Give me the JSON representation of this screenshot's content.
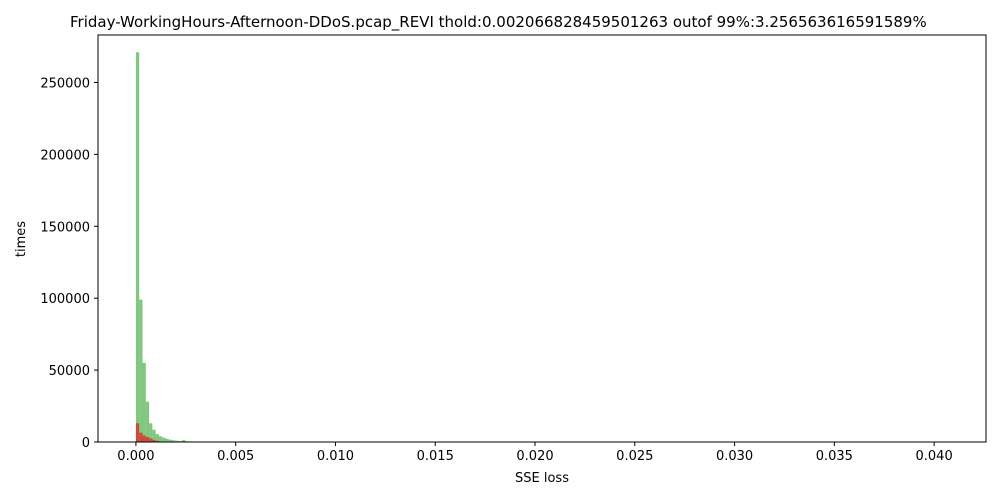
{
  "chart_data": {
    "type": "bar",
    "title": "Friday-WorkingHours-Afternoon-DDoS.pcap_REVI thold:0.002066828459501263 outof 99%:3.256563616591589%",
    "xlabel": "SSE loss",
    "ylabel": "times",
    "xlim": [
      -0.0019,
      0.0426
    ],
    "ylim": [
      0,
      283000
    ],
    "xticks": [
      0.0,
      0.005,
      0.01,
      0.015,
      0.02,
      0.025,
      0.03,
      0.035,
      0.04
    ],
    "xtick_labels": [
      "0.000",
      "0.005",
      "0.010",
      "0.015",
      "0.020",
      "0.025",
      "0.030",
      "0.035",
      "0.040"
    ],
    "yticks": [
      0,
      50000,
      100000,
      150000,
      200000,
      250000
    ],
    "ytick_labels": [
      "0",
      "50000",
      "100000",
      "150000",
      "200000",
      "250000"
    ],
    "bin_width": 0.000165,
    "grid": false,
    "series": [
      {
        "color": "#4daf4a",
        "opacity": 0.7,
        "x": [
          0.0,
          0.000165,
          0.00033,
          0.000495,
          0.00066,
          0.000825,
          0.00099,
          0.001155,
          0.00132,
          0.001485,
          0.00165,
          0.001815,
          0.00198,
          0.002145,
          0.00231,
          0.002475,
          0.00264,
          0.002805,
          0.00297,
          0.003135,
          0.0033
        ],
        "values": [
          271000,
          99000,
          55000,
          28000,
          13000,
          8500,
          5500,
          4000,
          3000,
          2200,
          1600,
          1200,
          900,
          700,
          1300,
          550,
          450,
          380,
          320,
          270,
          230
        ]
      },
      {
        "color": "#e41a1c",
        "opacity": 0.7,
        "x": [
          0.0,
          0.000165,
          0.00033,
          0.000495,
          0.00066,
          0.000825,
          0.00099,
          0.001155
        ],
        "values": [
          13000,
          6500,
          4500,
          3500,
          2500,
          1500,
          800,
          400
        ]
      }
    ]
  }
}
